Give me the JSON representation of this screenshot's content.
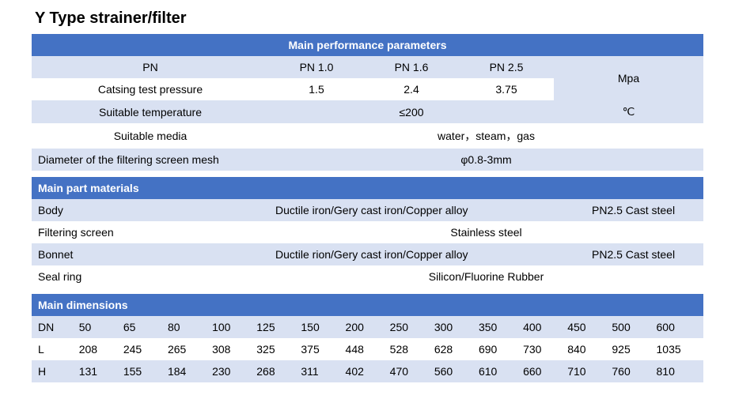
{
  "title": "Y Type strainer/filter",
  "perf": {
    "header": "Main performance parameters",
    "row1": {
      "label": "PN",
      "c2": "PN 1.0",
      "c3": "PN 1.6",
      "c4": "PN 2.5",
      "unit": "Mpa"
    },
    "row2": {
      "label": "Catsing test pressure",
      "c2": "1.5",
      "c3": "2.4",
      "c4": "3.75"
    },
    "row3": {
      "label": "Suitable temperature",
      "val": "≤200",
      "unit": "℃"
    },
    "row4": {
      "label": "Suitable media",
      "val": "water，steam，gas"
    },
    "row5": {
      "label": "Diameter of the filtering screen mesh",
      "val": "φ0.8-3mm"
    }
  },
  "mat": {
    "header": "Main part materials",
    "rows": [
      {
        "label": "Body",
        "c2": "Ductile iron/Gery cast iron/Copper alloy",
        "c3": "PN2.5 Cast steel"
      },
      {
        "label": "Filtering screen",
        "c2": "Stainless steel",
        "c3": ""
      },
      {
        "label": "Bonnet",
        "c2": "Ductile rion/Gery cast iron/Copper alloy",
        "c3": "PN2.5 Cast steel"
      },
      {
        "label": "Seal ring",
        "c2": "Silicon/Fluorine Rubber",
        "c3": ""
      }
    ]
  },
  "dim": {
    "header": "Main dimensions",
    "cols": [
      "DN",
      "50",
      "65",
      "80",
      "100",
      "125",
      "150",
      "200",
      "250",
      "300",
      "350",
      "400",
      "450",
      "500",
      "600"
    ],
    "rowL": [
      "L",
      "208",
      "245",
      "265",
      "308",
      "325",
      "375",
      "448",
      "528",
      "628",
      "690",
      "730",
      "840",
      "925",
      "1035"
    ],
    "rowH": [
      "H",
      "131",
      "155",
      "184",
      "230",
      "268",
      "311",
      "402",
      "470",
      "560",
      "610",
      "660",
      "710",
      "760",
      "810"
    ]
  },
  "colors": {
    "header_bg": "#4472c4",
    "header_fg": "#ffffff",
    "light_bg": "#d9e1f2",
    "white_bg": "#ffffff"
  }
}
